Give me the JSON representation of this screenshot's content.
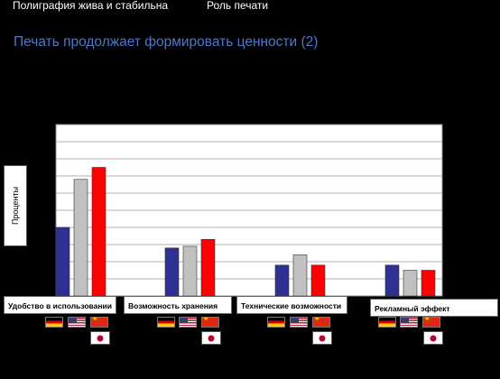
{
  "nav": {
    "item1": "Полиграфия жива и стабильна",
    "item2": "Роль печати"
  },
  "slide_title": "Печать продолжает формировать ценности (2)",
  "chart_data": {
    "type": "bar",
    "ylabel": "Проценты",
    "ylim": [
      0,
      100
    ],
    "yticks_visible": false,
    "grid": true,
    "categories": [
      "Удобство в использовании",
      "Возможность хранения",
      "Технические возможности",
      "Рекламный эффект"
    ],
    "series": [
      {
        "color": "#2e3192",
        "values": [
          40,
          28,
          18,
          18
        ],
        "flag": "de-icon"
      },
      {
        "color": "#c0c0c0",
        "values": [
          68,
          29,
          24,
          15
        ],
        "flag": "us-icon"
      },
      {
        "color": "#ff0000",
        "values": [
          75,
          33,
          18,
          15
        ],
        "flag": "cn-icon"
      }
    ],
    "extra_flag": "jp-icon"
  }
}
